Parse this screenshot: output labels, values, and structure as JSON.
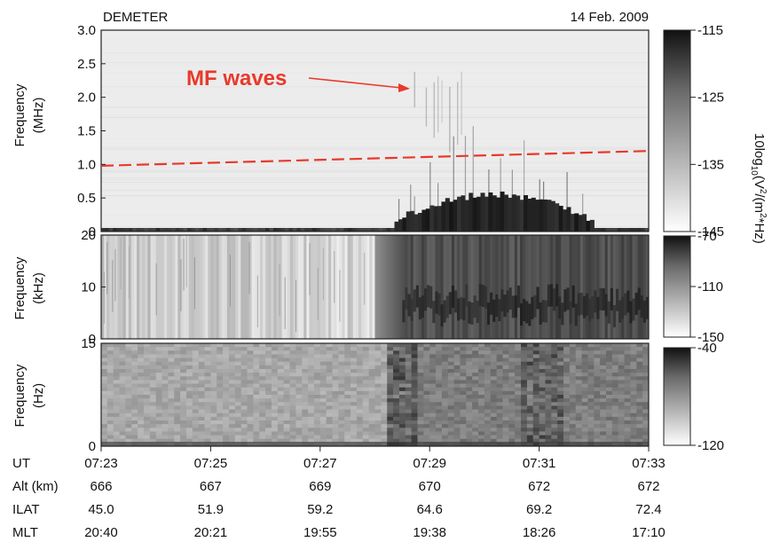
{
  "header": {
    "satellite": "DEMETER",
    "date": "14 Feb. 2009"
  },
  "annotation": {
    "text": "MF waves",
    "color": "#e8392b"
  },
  "colorbar_label": {
    "prefix": "10log",
    "sub": "10",
    "mid1": "(V",
    "sup1": "2",
    "mid2": "/(m",
    "sup2": "2",
    "suffix": "*Hz)"
  },
  "chart_data": [
    {
      "type": "heatmap",
      "panel": "MF spectrogram",
      "ylabel_line1": "Frequency",
      "ylabel_line2": "(MHz)",
      "ylim": [
        0,
        3.0
      ],
      "yticks": [
        "3.0",
        "2.5",
        "2.0",
        "1.5",
        "1.0",
        "0.5",
        "0"
      ],
      "ytick_values": [
        3.0,
        2.5,
        2.0,
        1.5,
        1.0,
        0.5,
        0
      ],
      "colorbar": {
        "min": -145,
        "max": -115,
        "ticks": [
          "-115",
          "-125",
          "-135",
          "-145"
        ],
        "tick_values": [
          -115,
          -125,
          -135,
          -145
        ]
      },
      "dashed_line": {
        "color": "#e8392b",
        "start_mhz": 0.98,
        "end_mhz": 1.2
      }
    },
    {
      "type": "heatmap",
      "panel": "VLF spectrogram",
      "ylabel_line1": "Frequency",
      "ylabel_line2": "(kHz)",
      "ylim": [
        0,
        20
      ],
      "yticks": [
        "20",
        "10",
        "0"
      ],
      "ytick_values": [
        20,
        10,
        0
      ],
      "colorbar": {
        "min": -150,
        "max": -70,
        "ticks": [
          "-70",
          "-110",
          "-150"
        ],
        "tick_values": [
          -70,
          -110,
          -150
        ]
      }
    },
    {
      "type": "heatmap",
      "panel": "ELF spectrogram",
      "ylabel_line1": "Frequency",
      "ylabel_line2": "(Hz)",
      "ylim": [
        0,
        15
      ],
      "yticks": [
        "15",
        "0"
      ],
      "ytick_values": [
        15,
        0
      ],
      "colorbar": {
        "min": -120,
        "max": -40,
        "ticks": [
          "-40",
          "-120"
        ],
        "tick_values": [
          -40,
          -120
        ]
      }
    }
  ],
  "orbit_table": {
    "rows": [
      {
        "label": "UT",
        "values": [
          "07:23",
          "07:25",
          "07:27",
          "07:29",
          "07:31",
          "07:33"
        ]
      },
      {
        "label": "Alt (km)",
        "values": [
          "666",
          "667",
          "669",
          "670",
          "672",
          "672"
        ]
      },
      {
        "label": "ILAT",
        "values": [
          "45.0",
          "51.9",
          "59.2",
          "64.6",
          "69.2",
          "72.4"
        ]
      },
      {
        "label": "MLT",
        "values": [
          "20:40",
          "20:21",
          "19:55",
          "19:38",
          "18:26",
          "17:10"
        ]
      }
    ]
  }
}
